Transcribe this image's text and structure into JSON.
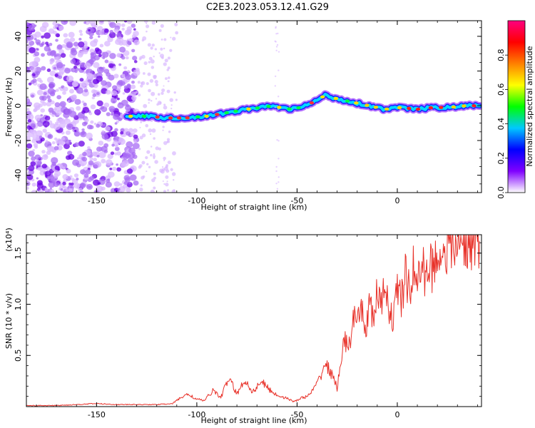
{
  "title": "C2E3.2023.053.12.41.G29",
  "colors": {
    "axis": "#000000",
    "snr_line": "#e8322a",
    "scatter_light": "#d9b8ff",
    "scatter_mid": "#a86cf4",
    "scatter_dark": "#6a00e6"
  },
  "chart_data": [
    {
      "type": "heatmap",
      "xlabel": "Height of straight line (km)",
      "ylabel": "Frequency (Hz)",
      "xlim": [
        -185,
        42
      ],
      "ylim": [
        -50,
        49
      ],
      "xticks": [
        -150,
        -100,
        -50,
        0
      ],
      "yticks": [
        -40,
        -20,
        0,
        20,
        40
      ],
      "ridge": {
        "x": [
          -135,
          -125,
          -115,
          -105,
          -95,
          -85,
          -75,
          -68,
          -62,
          -55,
          -48,
          -42,
          -36,
          -30,
          -22,
          -14,
          -6,
          2,
          10,
          18,
          26,
          34,
          41
        ],
        "y": [
          -6,
          -6,
          -7,
          -7,
          -6,
          -4,
          -2,
          -1,
          0,
          -2,
          -1,
          2,
          6,
          4,
          2,
          0,
          -2,
          -1,
          -2,
          -1,
          -1,
          0,
          0
        ]
      },
      "colorbar": {
        "label": "Normalized spectral amplitude",
        "range": [
          0.0,
          1.0
        ],
        "ticks": [
          "0.0",
          "0.2",
          "0.4",
          "0.6",
          "0.8"
        ],
        "tick_values": [
          0.0,
          0.2,
          0.4,
          0.6,
          0.8
        ],
        "colormap": [
          "#ffffff",
          "#8000ff",
          "#0000ff",
          "#00c8ff",
          "#00ff00",
          "#ffff00",
          "#ff8000",
          "#ff0000",
          "#ff0080"
        ]
      }
    },
    {
      "type": "line",
      "xlabel": "Height of straight line (km)",
      "ylabel": "SNR (10 * v/v)",
      "multiplier": "(x10⁴)",
      "xlim": [
        -185,
        42
      ],
      "ylim": [
        0.0,
        1.68
      ],
      "xticks": [
        -150,
        -100,
        -50,
        0
      ],
      "yticks": [
        0.5,
        1.0,
        1.5
      ],
      "ytick_labels": [
        "0.5",
        "1.0",
        "1.5"
      ],
      "series": [
        {
          "x": [
            -185,
            -170,
            -160,
            -150,
            -140,
            -130,
            -120,
            -112,
            -108,
            -104,
            -100,
            -96,
            -92,
            -88,
            -84,
            -80,
            -76,
            -72,
            -68,
            -64,
            -60,
            -56,
            -52,
            -48,
            -44,
            -40,
            -36,
            -33,
            -30,
            -28,
            -26,
            -24,
            -22,
            -20,
            -18,
            -16,
            -14,
            -12,
            -10,
            -8,
            -6,
            -4,
            -2,
            0,
            2,
            4,
            6,
            8,
            10,
            12,
            14,
            16,
            18,
            20,
            22,
            24,
            26,
            28,
            30,
            32,
            34,
            36,
            38,
            41
          ],
          "values": [
            0.01,
            0.01,
            0.02,
            0.03,
            0.02,
            0.02,
            0.02,
            0.03,
            0.09,
            0.12,
            0.07,
            0.06,
            0.16,
            0.09,
            0.28,
            0.12,
            0.26,
            0.14,
            0.25,
            0.17,
            0.11,
            0.09,
            0.05,
            0.08,
            0.11,
            0.22,
            0.42,
            0.33,
            0.18,
            0.48,
            0.65,
            0.58,
            0.88,
            0.76,
            0.98,
            0.74,
            1.0,
            0.85,
            1.12,
            0.96,
            1.18,
            0.98,
            0.8,
            1.22,
            1.02,
            1.28,
            1.12,
            1.35,
            1.21,
            1.38,
            1.28,
            1.4,
            1.33,
            1.52,
            1.48,
            1.55,
            1.58,
            1.55,
            1.63,
            1.59,
            1.62,
            1.6,
            1.64,
            1.62
          ]
        }
      ]
    }
  ]
}
